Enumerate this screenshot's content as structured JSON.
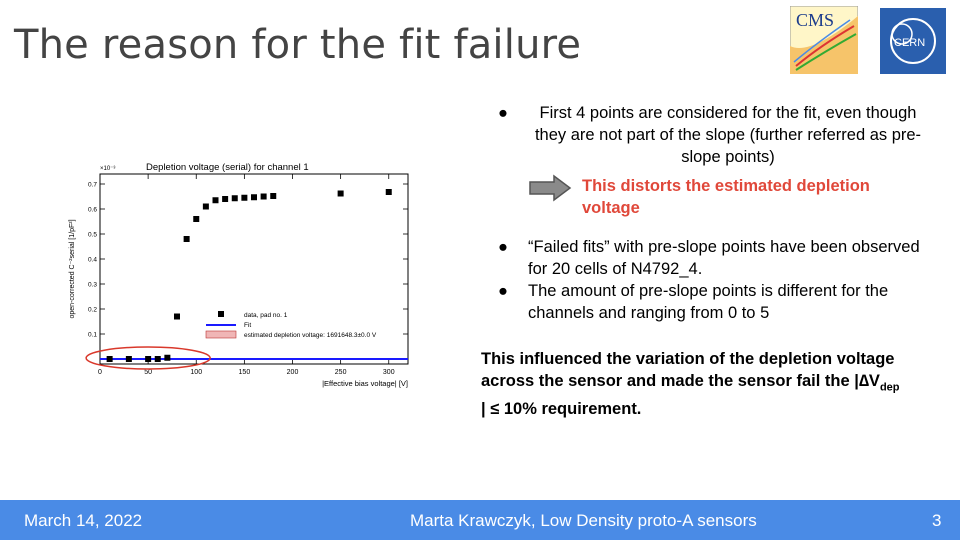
{
  "slide": {
    "title": "The reason for the fit failure",
    "logos": {
      "cms": "CMS",
      "cern": "CERN"
    }
  },
  "bullets_top": [
    "First 4 points are considered for the fit, even though they are not part of the slope (further referred as pre-slope points)"
  ],
  "arrow_note": "This distorts the estimated depletion voltage",
  "bullets_bottom": [
    "“Failed fits” with pre-slope points have been observed for 20 cells of N4792_4.",
    "The amount of pre-slope points is different for the channels and ranging from 0 to 5"
  ],
  "conclusion": {
    "part1": "This influenced the variation of the depletion voltage across the sensor and made the sensor fail the |",
    "delta": "∆V",
    "sub": "dep",
    "part2": " | ≤ 10% requirement."
  },
  "footer": {
    "date": "March 14, 2022",
    "author": "Marta Krawczyk, Low Density proto-A sensors",
    "page": "3"
  },
  "chart_data": {
    "type": "scatter",
    "title": "Depletion voltage (serial) for channel 1",
    "xlabel": "|Effective bias voltage| [V]",
    "ylabel": "open-corrected C⁻²serial [1/pF²]",
    "y_multiplier": "×10⁻³",
    "xlim": [
      0,
      320
    ],
    "ylim": [
      -0.02,
      0.74
    ],
    "xticks": [
      0,
      50,
      100,
      150,
      200,
      250,
      300
    ],
    "yticks": [
      0.1,
      0.2,
      0.3,
      0.4,
      0.5,
      0.6,
      0.7
    ],
    "series": [
      {
        "name": "data, pad no. 1",
        "x": [
          10,
          30,
          50,
          60,
          70,
          80,
          90,
          100,
          110,
          120,
          130,
          140,
          150,
          160,
          170,
          180,
          250,
          300
        ],
        "y": [
          0.0,
          0.0,
          0.0,
          0.0,
          0.005,
          0.17,
          0.48,
          0.56,
          0.61,
          0.635,
          0.64,
          0.643,
          0.645,
          0.647,
          0.65,
          0.652,
          0.662,
          0.668
        ]
      }
    ],
    "fit": {
      "name": "Fit",
      "y": 0.0
    },
    "legend_labels": [
      "data, pad no. 1",
      "Fit",
      "estimated depletion voltage: 1691648.3±0.0 V"
    ],
    "colors": {
      "points": "#000000",
      "fit": "#1a1aff",
      "highlight": "#d9382b",
      "band": "#f0b6b6"
    }
  }
}
